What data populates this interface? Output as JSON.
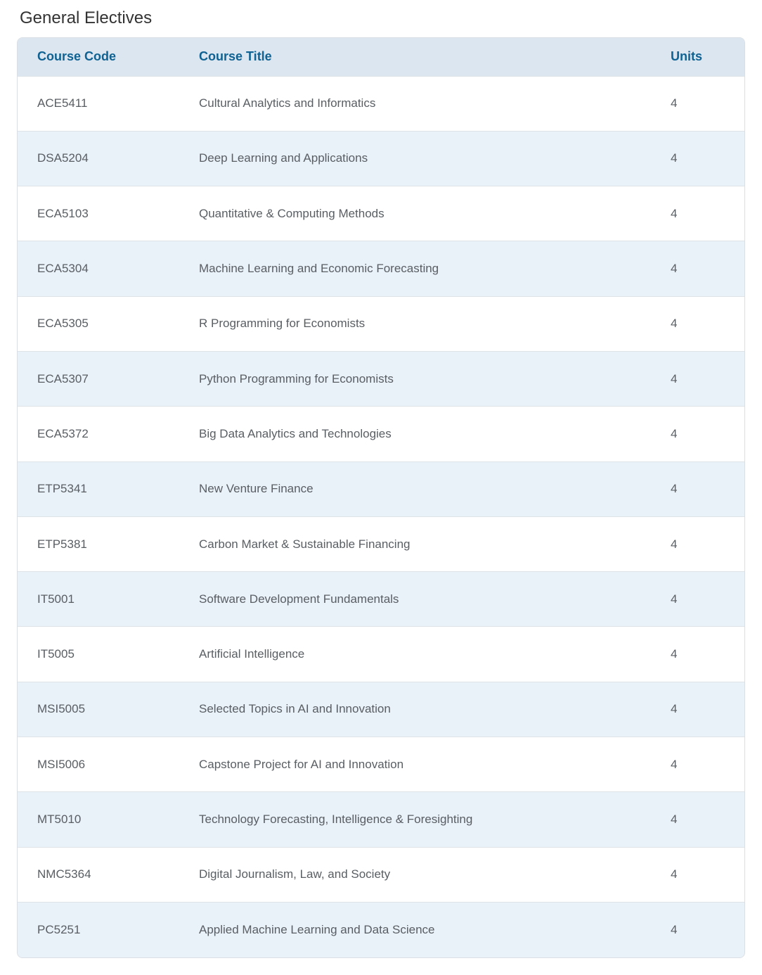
{
  "page": {
    "title": "General Electives"
  },
  "colors": {
    "header_bg": "#dbe6f1",
    "header_text": "#0f6292",
    "row_alt_bg": "#e9f1f9",
    "body_text": "#595e63",
    "border": "#d9dfe5",
    "title_text": "#333333"
  },
  "table": {
    "headers": {
      "code": "Course Code",
      "title": "Course Title",
      "units": "Units"
    },
    "rows": [
      {
        "code": "ACE5411",
        "title": "Cultural Analytics and Informatics",
        "units": "4"
      },
      {
        "code": "DSA5204",
        "title": "Deep Learning and Applications",
        "units": "4"
      },
      {
        "code": "ECA5103",
        "title": "Quantitative & Computing Methods",
        "units": "4"
      },
      {
        "code": "ECA5304",
        "title": "Machine Learning and Economic Forecasting",
        "units": "4"
      },
      {
        "code": "ECA5305",
        "title": "R Programming for Economists",
        "units": "4"
      },
      {
        "code": "ECA5307",
        "title": "Python Programming for Economists",
        "units": "4"
      },
      {
        "code": "ECA5372",
        "title": "Big Data Analytics and Technologies",
        "units": "4"
      },
      {
        "code": "ETP5341",
        "title": "New Venture Finance",
        "units": "4"
      },
      {
        "code": "ETP5381",
        "title": "Carbon Market & Sustainable Financing",
        "units": "4"
      },
      {
        "code": "IT5001",
        "title": "Software Development Fundamentals",
        "units": "4"
      },
      {
        "code": "IT5005",
        "title": "Artificial Intelligence",
        "units": "4"
      },
      {
        "code": "MSI5005",
        "title": "Selected Topics in AI and Innovation",
        "units": "4"
      },
      {
        "code": "MSI5006",
        "title": "Capstone Project for AI and Innovation",
        "units": "4"
      },
      {
        "code": "MT5010",
        "title": "Technology Forecasting, Intelligence & Foresighting",
        "units": "4"
      },
      {
        "code": "NMC5364",
        "title": "Digital Journalism, Law, and Society",
        "units": "4"
      },
      {
        "code": "PC5251",
        "title": "Applied Machine Learning and Data Science",
        "units": "4"
      }
    ]
  }
}
